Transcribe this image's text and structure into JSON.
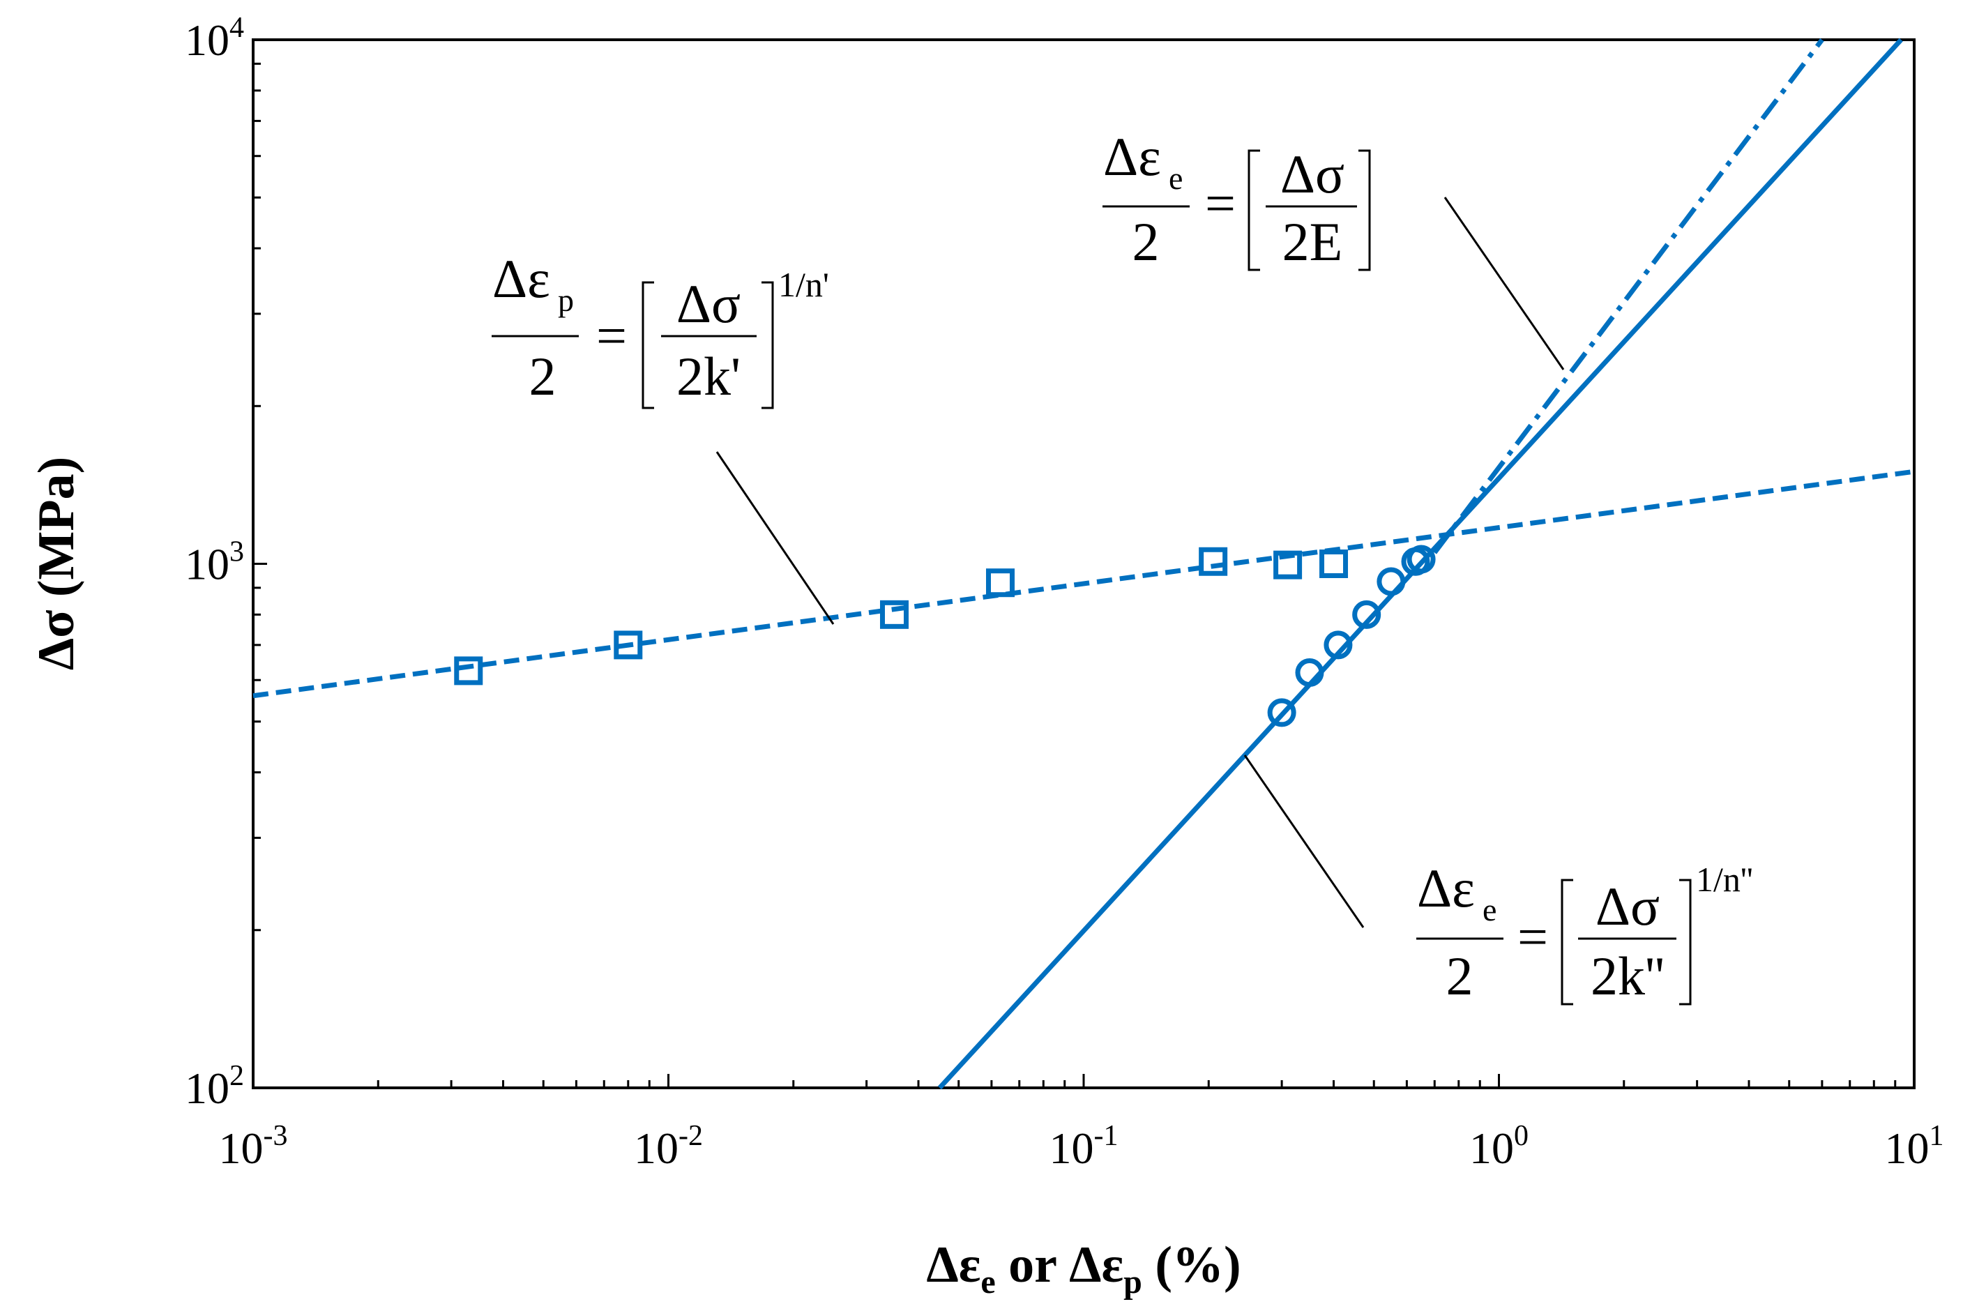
{
  "chart_data": {
    "type": "scatter",
    "x_scale": "log",
    "y_scale": "log",
    "xlim": [
      0.001,
      10
    ],
    "ylim": [
      100,
      10000
    ],
    "x_tick_labels": [
      {
        "value": 0.001,
        "base": "10",
        "exp": "-3"
      },
      {
        "value": 0.01,
        "base": "10",
        "exp": "-2"
      },
      {
        "value": 0.1,
        "base": "10",
        "exp": "-1"
      },
      {
        "value": 1,
        "base": "10",
        "exp": "0"
      },
      {
        "value": 10,
        "base": "10",
        "exp": "1"
      }
    ],
    "y_tick_labels": [
      {
        "value": 100,
        "base": "10",
        "exp": "2"
      },
      {
        "value": 1000,
        "base": "10",
        "exp": "3"
      },
      {
        "value": 10000,
        "base": "10",
        "exp": "4"
      }
    ],
    "xlabel": {
      "delta": "Δε",
      "sub1": "e",
      "mid": " or ",
      "delta2": "Δε",
      "sub2": "p",
      "tail": " (%)"
    },
    "ylabel": "Δσ (MPa)",
    "grid": false,
    "color": "#0070C0",
    "series": [
      {
        "marker": "square",
        "points": [
          {
            "x": 0.0033,
            "y": 625
          },
          {
            "x": 0.008,
            "y": 700
          },
          {
            "x": 0.035,
            "y": 800
          },
          {
            "x": 0.063,
            "y": 920
          },
          {
            "x": 0.205,
            "y": 1010
          },
          {
            "x": 0.31,
            "y": 995
          },
          {
            "x": 0.4,
            "y": 1000
          }
        ]
      },
      {
        "marker": "circle",
        "points": [
          {
            "x": 0.3,
            "y": 520
          },
          {
            "x": 0.35,
            "y": 620
          },
          {
            "x": 0.41,
            "y": 700
          },
          {
            "x": 0.48,
            "y": 800
          },
          {
            "x": 0.55,
            "y": 925
          },
          {
            "x": 0.63,
            "y": 1010
          },
          {
            "x": 0.65,
            "y": 1020
          }
        ]
      }
    ],
    "fit_lines": [
      {
        "style": "dashed",
        "points": [
          {
            "x": 0.001,
            "y": 560
          },
          {
            "x": 10,
            "y": 1500
          }
        ]
      },
      {
        "style": "solid",
        "points": [
          {
            "x": 0.045,
            "y": 100
          },
          {
            "x": 9.3,
            "y": 10000
          }
        ]
      },
      {
        "style": "dash-dot",
        "points": [
          {
            "x": 0.7,
            "y": 1050
          },
          {
            "x": 6.0,
            "y": 10000
          }
        ]
      }
    ],
    "annotations": {
      "plastic": {
        "num": "Δε",
        "num_sub": "p",
        "den": "2",
        "eq": "=",
        "frac_num": "Δσ",
        "frac_den": "2k'",
        "exp": "1/n'"
      },
      "elastic": {
        "num": "Δε",
        "num_sub": "e",
        "den": "2",
        "eq": "=",
        "frac_num": "Δσ",
        "frac_den": "2E"
      },
      "elastic_fit": {
        "num": "Δε",
        "num_sub": "e",
        "den": "2",
        "eq": "=",
        "frac_num": "Δσ",
        "frac_den": "2k''",
        "exp": "1/n''"
      }
    }
  }
}
